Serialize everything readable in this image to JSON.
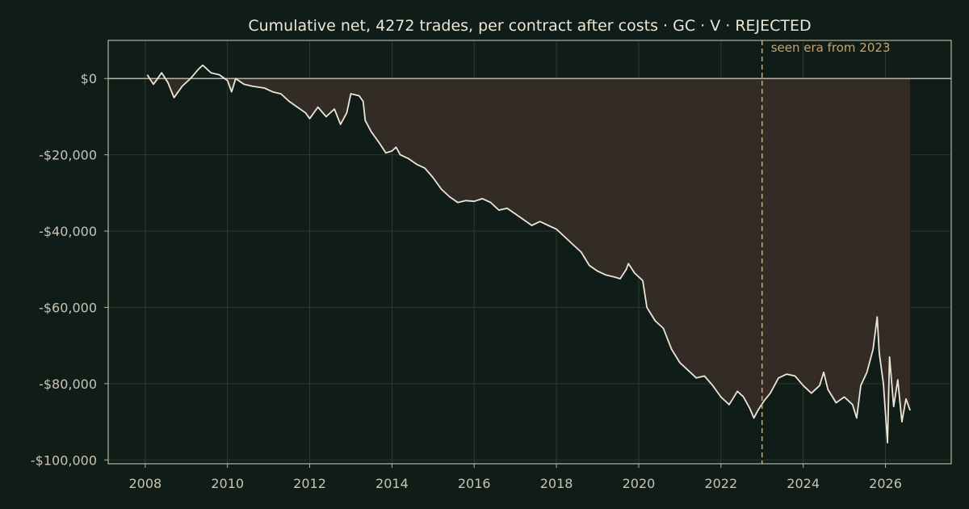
{
  "chart_data": {
    "type": "line",
    "title": "Cumulative net, 4272 trades, per contract after costs  ·  GC · V · REJECTED",
    "xlabel": "",
    "ylabel": "",
    "xlim": [
      2007.1,
      2027.6
    ],
    "ylim": [
      -101000,
      10000
    ],
    "x_ticks": [
      2008,
      2010,
      2012,
      2014,
      2016,
      2018,
      2020,
      2022,
      2024,
      2026
    ],
    "x_tick_labels": [
      "2008",
      "2010",
      "2012",
      "2014",
      "2016",
      "2018",
      "2020",
      "2022",
      "2024",
      "2026"
    ],
    "y_ticks": [
      0,
      -20000,
      -40000,
      -60000,
      -80000,
      -100000
    ],
    "y_tick_labels": [
      "$0",
      "-$20,000",
      "-$40,000",
      "-$60,000",
      "-$80,000",
      "-$100,000"
    ],
    "grid": true,
    "zero_line": 0,
    "drawdown_fill": true,
    "series": [
      {
        "values": [
          [
            2008.05,
            1000
          ],
          [
            2008.2,
            -1500
          ],
          [
            2008.4,
            1500
          ],
          [
            2008.55,
            -1000
          ],
          [
            2008.7,
            -5000
          ],
          [
            2008.9,
            -2000
          ],
          [
            2009.1,
            0
          ],
          [
            2009.3,
            2500
          ],
          [
            2009.4,
            3500
          ],
          [
            2009.6,
            1500
          ],
          [
            2009.8,
            1000
          ],
          [
            2010.0,
            -500
          ],
          [
            2010.1,
            -3500
          ],
          [
            2010.2,
            0
          ],
          [
            2010.4,
            -1500
          ],
          [
            2010.6,
            -2000
          ],
          [
            2010.9,
            -2500
          ],
          [
            2011.1,
            -3500
          ],
          [
            2011.3,
            -4000
          ],
          [
            2011.5,
            -6000
          ],
          [
            2011.7,
            -7500
          ],
          [
            2011.9,
            -9000
          ],
          [
            2012.0,
            -10500
          ],
          [
            2012.2,
            -7500
          ],
          [
            2012.4,
            -10000
          ],
          [
            2012.6,
            -8000
          ],
          [
            2012.75,
            -12000
          ],
          [
            2012.9,
            -9000
          ],
          [
            2013.0,
            -4000
          ],
          [
            2013.2,
            -4500
          ],
          [
            2013.3,
            -6000
          ],
          [
            2013.35,
            -11000
          ],
          [
            2013.5,
            -14000
          ],
          [
            2013.7,
            -17000
          ],
          [
            2013.85,
            -19500
          ],
          [
            2014.0,
            -19000
          ],
          [
            2014.1,
            -18000
          ],
          [
            2014.2,
            -20000
          ],
          [
            2014.4,
            -21000
          ],
          [
            2014.6,
            -22500
          ],
          [
            2014.8,
            -23500
          ],
          [
            2015.0,
            -26000
          ],
          [
            2015.2,
            -29000
          ],
          [
            2015.4,
            -31000
          ],
          [
            2015.6,
            -32500
          ],
          [
            2015.8,
            -32000
          ],
          [
            2016.0,
            -32200
          ],
          [
            2016.2,
            -31500
          ],
          [
            2016.4,
            -32500
          ],
          [
            2016.6,
            -34500
          ],
          [
            2016.8,
            -34000
          ],
          [
            2017.0,
            -35500
          ],
          [
            2017.2,
            -37000
          ],
          [
            2017.4,
            -38500
          ],
          [
            2017.6,
            -37500
          ],
          [
            2017.8,
            -38500
          ],
          [
            2018.0,
            -39500
          ],
          [
            2018.2,
            -41500
          ],
          [
            2018.4,
            -43500
          ],
          [
            2018.6,
            -45500
          ],
          [
            2018.8,
            -49000
          ],
          [
            2019.0,
            -50500
          ],
          [
            2019.2,
            -51500
          ],
          [
            2019.4,
            -52000
          ],
          [
            2019.55,
            -52500
          ],
          [
            2019.7,
            -50000
          ],
          [
            2019.75,
            -48500
          ],
          [
            2019.9,
            -51000
          ],
          [
            2020.1,
            -53000
          ],
          [
            2020.2,
            -60000
          ],
          [
            2020.4,
            -63500
          ],
          [
            2020.6,
            -65500
          ],
          [
            2020.8,
            -71000
          ],
          [
            2021.0,
            -74500
          ],
          [
            2021.2,
            -76500
          ],
          [
            2021.4,
            -78500
          ],
          [
            2021.6,
            -78000
          ],
          [
            2021.8,
            -80500
          ],
          [
            2022.0,
            -83500
          ],
          [
            2022.2,
            -85500
          ],
          [
            2022.4,
            -82000
          ],
          [
            2022.55,
            -83500
          ],
          [
            2022.7,
            -86500
          ],
          [
            2022.8,
            -89000
          ],
          [
            2022.9,
            -87000
          ],
          [
            2023.05,
            -84500
          ],
          [
            2023.2,
            -82500
          ],
          [
            2023.4,
            -78500
          ],
          [
            2023.6,
            -77500
          ],
          [
            2023.8,
            -78000
          ],
          [
            2024.0,
            -80500
          ],
          [
            2024.2,
            -82500
          ],
          [
            2024.4,
            -80500
          ],
          [
            2024.5,
            -77000
          ],
          [
            2024.6,
            -81500
          ],
          [
            2024.8,
            -85000
          ],
          [
            2025.0,
            -83500
          ],
          [
            2025.2,
            -85500
          ],
          [
            2025.3,
            -89000
          ],
          [
            2025.4,
            -80500
          ],
          [
            2025.55,
            -77000
          ],
          [
            2025.7,
            -71000
          ],
          [
            2025.8,
            -62500
          ],
          [
            2025.85,
            -72000
          ],
          [
            2025.95,
            -80000
          ],
          [
            2026.05,
            -95500
          ],
          [
            2026.1,
            -73000
          ],
          [
            2026.2,
            -86000
          ],
          [
            2026.3,
            -79000
          ],
          [
            2026.4,
            -90000
          ],
          [
            2026.5,
            -84000
          ],
          [
            2026.6,
            -87000
          ]
        ]
      }
    ],
    "annotations": [
      {
        "x": 2023.0,
        "text": "seen era from 2023",
        "style": "dashed vertical line"
      }
    ],
    "colors": {
      "background": "#101c17",
      "line": "#ece6d6",
      "drawdown_fill": "#332c26",
      "zero_line": "#c8c2b0",
      "annotation": "#c9a46a"
    }
  }
}
